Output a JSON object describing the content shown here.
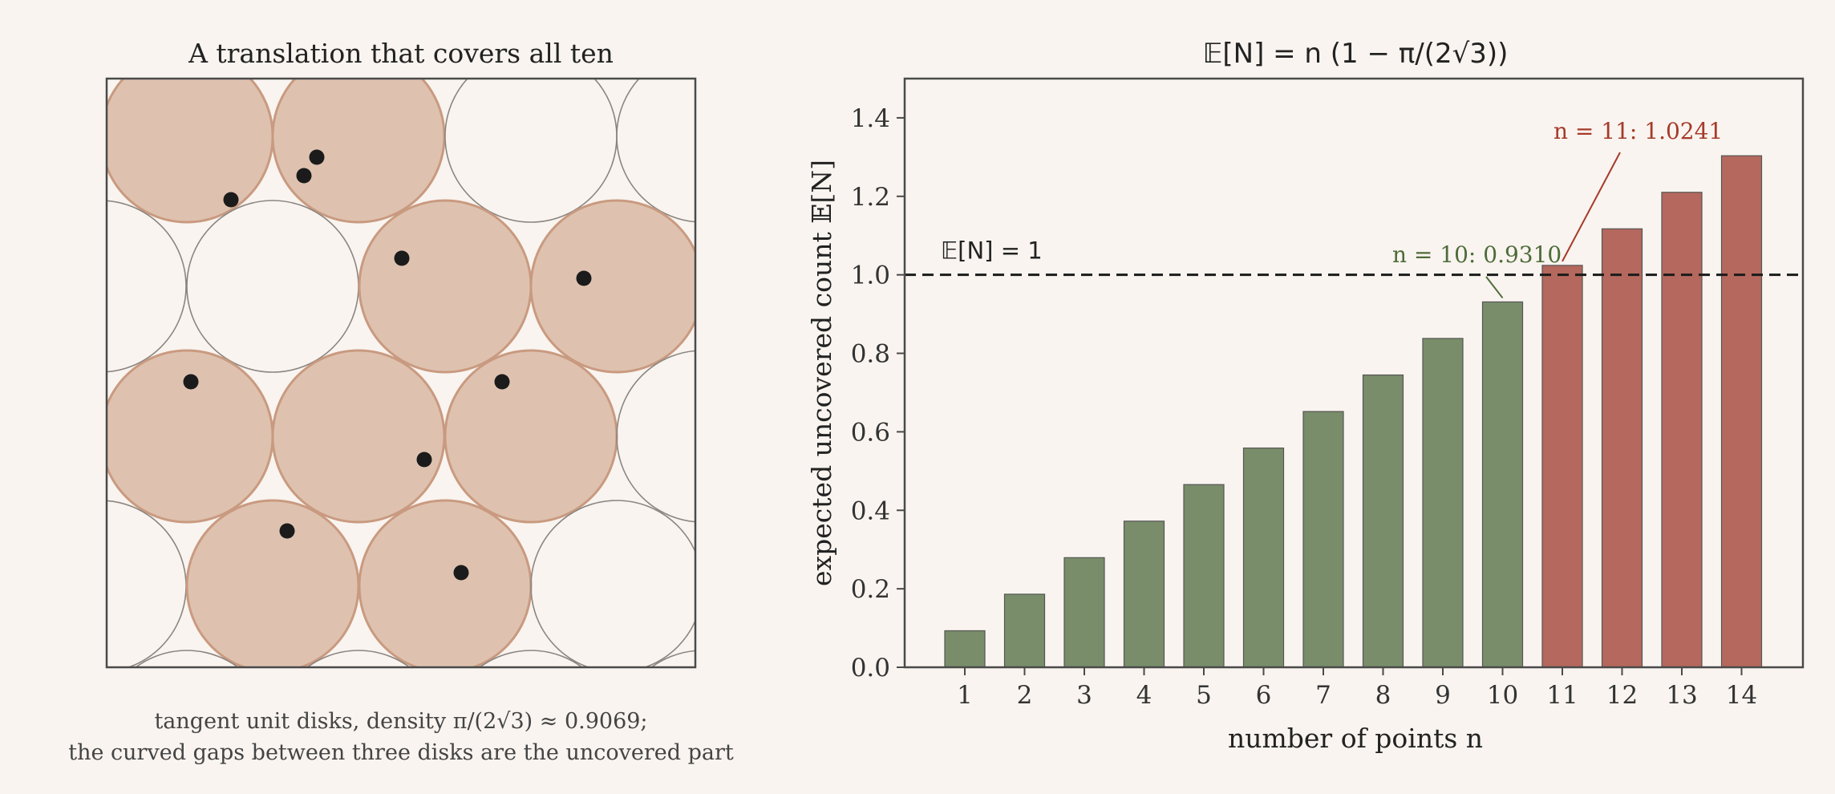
{
  "colors": {
    "background": "#f9f4ef",
    "disk_fill": "#dec2af",
    "disk_stroke": "#c99a80",
    "empty_disk_stroke": "#8a8580",
    "point": "#1b1b1b",
    "bar_green": "#798d6a",
    "bar_red": "#b5685d",
    "green_text": "#4e6b3a",
    "red_text": "#a63a2a",
    "axis": "#4a4a4a",
    "text": "#333333"
  },
  "left_panel": {
    "title": "A translation that covers all ten",
    "caption_line1": "tangent unit disks, density π/(2√3) ≈ 0.9069;",
    "caption_line2": "the curved gaps between three disks are the uncovered part",
    "point_count": 10
  },
  "chart_data": {
    "type": "bar",
    "title": "𝔼[N] = n (1 − π/(2√3))",
    "xlabel": "number of points n",
    "ylabel": "expected uncovered count 𝔼[N]",
    "categories": [
      "1",
      "2",
      "3",
      "4",
      "5",
      "6",
      "7",
      "8",
      "9",
      "10",
      "11",
      "12",
      "13",
      "14"
    ],
    "values": [
      0.0931,
      0.1862,
      0.2793,
      0.3724,
      0.4655,
      0.5586,
      0.6517,
      0.7448,
      0.8379,
      0.931,
      1.0241,
      1.1172,
      1.2103,
      1.3034
    ],
    "ylim": [
      0,
      1.5
    ],
    "yticks": [
      "0.0",
      "0.2",
      "0.4",
      "0.6",
      "0.8",
      "1.0",
      "1.2",
      "1.4"
    ],
    "ytick_values": [
      0,
      0.2,
      0.4,
      0.6,
      0.8,
      1.0,
      1.2,
      1.4
    ],
    "threshold": {
      "value": 1.0,
      "label": "𝔼[N] = 1"
    },
    "annotations": [
      {
        "n": 10,
        "label": "n = 10: 0.9310",
        "color": "green"
      },
      {
        "n": 11,
        "label": "n = 11: 1.0241",
        "color": "red"
      }
    ],
    "grid": false,
    "legend": "none"
  }
}
